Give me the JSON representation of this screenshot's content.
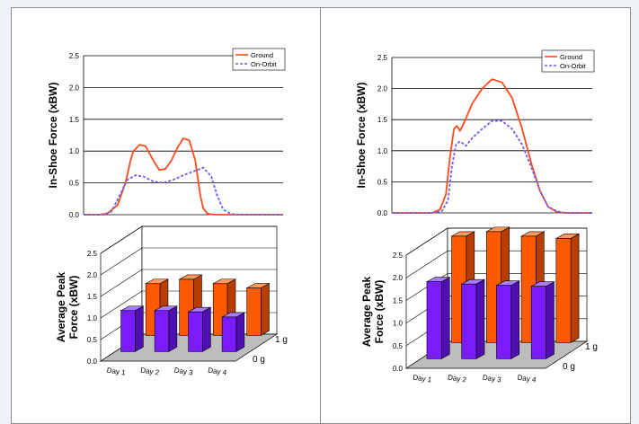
{
  "colors": {
    "ground": "#ff4a1c",
    "on_orbit": "#6a5cf6",
    "bar_ground_front": "#ff5a00",
    "bar_ground_side": "#b83d00",
    "bar_ground_top": "#ff9a5a",
    "bar_orbit_front": "#7b1cff",
    "bar_orbit_side": "#4f0fb0",
    "bar_orbit_top": "#a97bff",
    "gridline": "#000000",
    "floor": "#bdbdbd"
  },
  "chart_data": [
    {
      "type": "line",
      "ylabel": "In-Shoe Force (xBW)",
      "xlabel": "",
      "ylim": [
        0,
        2.5
      ],
      "yticks": [
        "0.0",
        "0.5",
        "1.0",
        "1.5",
        "2.0",
        "2.5"
      ],
      "legend": "top-right",
      "grid": true,
      "series": [
        {
          "name": "Ground",
          "style": "solid",
          "x": [
            0,
            0.08,
            0.12,
            0.17,
            0.21,
            0.235,
            0.25,
            0.28,
            0.31,
            0.35,
            0.38,
            0.41,
            0.44,
            0.47,
            0.5,
            0.53,
            0.56,
            0.585,
            0.6,
            0.62,
            0.64,
            0.66,
            0.7,
            0.8,
            0.9,
            1.0
          ],
          "y": [
            0,
            0,
            0.02,
            0.15,
            0.5,
            0.85,
            1.0,
            1.1,
            1.08,
            0.85,
            0.7,
            0.72,
            0.85,
            1.05,
            1.2,
            1.17,
            0.85,
            0.3,
            0.1,
            0.02,
            0.005,
            0,
            0,
            0,
            0,
            0
          ]
        },
        {
          "name": "On-Orbit",
          "style": "dashed",
          "x": [
            0,
            0.1,
            0.14,
            0.18,
            0.22,
            0.26,
            0.3,
            0.35,
            0.4,
            0.45,
            0.5,
            0.55,
            0.6,
            0.64,
            0.67,
            0.7,
            0.74,
            0.8,
            0.9,
            1.0
          ],
          "y": [
            0,
            0,
            0.05,
            0.3,
            0.55,
            0.62,
            0.6,
            0.52,
            0.5,
            0.55,
            0.62,
            0.68,
            0.74,
            0.6,
            0.3,
            0.08,
            0.01,
            0,
            0,
            0
          ]
        }
      ]
    },
    {
      "type": "line",
      "ylabel": "In-Shoe Force (xBW)",
      "xlabel": "",
      "ylim": [
        0,
        2.5
      ],
      "yticks": [
        "0.0",
        "0.5",
        "1.0",
        "1.5",
        "2.0",
        "2.5"
      ],
      "legend": "top-right",
      "grid": true,
      "series": [
        {
          "name": "Ground",
          "style": "solid",
          "x": [
            0,
            0.2,
            0.24,
            0.27,
            0.29,
            0.31,
            0.325,
            0.34,
            0.36,
            0.4,
            0.45,
            0.5,
            0.55,
            0.6,
            0.65,
            0.7,
            0.74,
            0.78,
            0.82,
            0.86,
            0.9,
            1.0
          ],
          "y": [
            0,
            0,
            0.05,
            0.3,
            0.9,
            1.35,
            1.4,
            1.32,
            1.45,
            1.75,
            2.0,
            2.15,
            2.1,
            1.85,
            1.35,
            0.75,
            0.35,
            0.1,
            0.02,
            0,
            0,
            0
          ]
        },
        {
          "name": "On-Orbit",
          "style": "dashed",
          "x": [
            0,
            0.2,
            0.25,
            0.28,
            0.3,
            0.32,
            0.34,
            0.37,
            0.4,
            0.45,
            0.5,
            0.55,
            0.6,
            0.65,
            0.7,
            0.74,
            0.78,
            0.82,
            0.86,
            0.9,
            1.0
          ],
          "y": [
            0,
            0,
            0.03,
            0.2,
            0.75,
            1.1,
            1.15,
            1.08,
            1.2,
            1.35,
            1.48,
            1.48,
            1.35,
            1.1,
            0.7,
            0.35,
            0.1,
            0.03,
            0,
            0,
            0
          ]
        }
      ]
    },
    {
      "type": "bar",
      "subtype": "3d",
      "ylabel": "Average Peak Force (xBW)",
      "ylim": [
        0,
        2.5
      ],
      "yticks": [
        "0.0",
        "0.5",
        "1.0",
        "1.5",
        "2.0",
        "2.5"
      ],
      "categories": [
        "Day 1",
        "Day 2",
        "Day 3",
        "Day 4"
      ],
      "depth_labels": [
        "1 g",
        "0 g"
      ],
      "grid": true,
      "series": [
        {
          "name": "1 g",
          "values": [
            1.2,
            1.3,
            1.2,
            1.1
          ]
        },
        {
          "name": "0 g",
          "values": [
            0.95,
            0.95,
            0.92,
            0.8
          ]
        }
      ]
    },
    {
      "type": "bar",
      "subtype": "3d",
      "ylabel": "Average Peak Force (xBW)",
      "ylim": [
        0,
        2.5
      ],
      "yticks": [
        "0.0",
        "0.5",
        "1.0",
        "1.5",
        "2.0",
        "2.5"
      ],
      "categories": [
        "Day 1",
        "Day 2",
        "Day 3",
        "Day 4"
      ],
      "depth_labels": [
        "1 g",
        "0 g"
      ],
      "grid": true,
      "series": [
        {
          "name": "1 g",
          "values": [
            2.35,
            2.45,
            2.35,
            2.3
          ]
        },
        {
          "name": "0 g",
          "values": [
            1.7,
            1.65,
            1.62,
            1.6
          ]
        }
      ]
    }
  ]
}
